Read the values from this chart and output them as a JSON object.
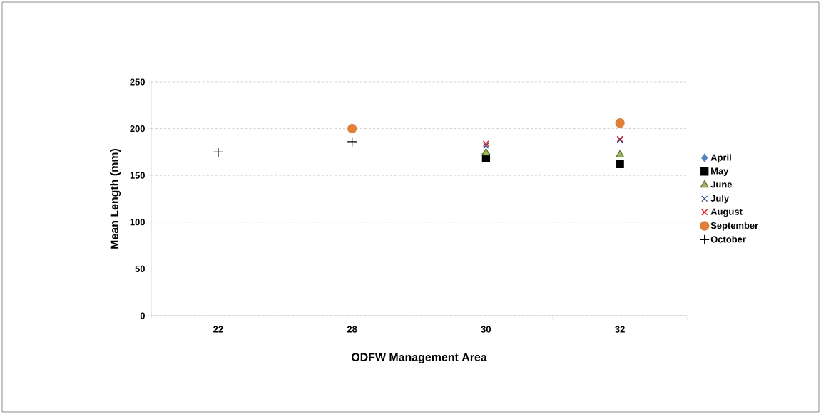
{
  "chart_data": {
    "type": "scatter",
    "xlabel": "ODFW Management Area",
    "ylabel": "Mean Length (mm)",
    "categories": [
      "22",
      "28",
      "30",
      "32"
    ],
    "ylim": [
      0,
      250
    ],
    "yticks": [
      0,
      50,
      100,
      150,
      200,
      250
    ],
    "grid": "y",
    "legend": "right",
    "series": [
      {
        "name": "April",
        "color": "#4f81bd",
        "marker": "diamond",
        "values": [
          null,
          null,
          null,
          null
        ]
      },
      {
        "name": "May",
        "color": "#000000",
        "marker": "square",
        "values": [
          null,
          null,
          169,
          162
        ]
      },
      {
        "name": "June",
        "color": "#9bbb59",
        "marker": "triangle",
        "values": [
          null,
          null,
          174,
          172
        ]
      },
      {
        "name": "July",
        "color": "#1f497d",
        "marker": "cross",
        "values": [
          null,
          null,
          182,
          188
        ]
      },
      {
        "name": "August",
        "color": "#e31a1c",
        "marker": "cross",
        "values": [
          null,
          null,
          184,
          189
        ]
      },
      {
        "name": "September",
        "color": "#e07f3a",
        "marker": "circle",
        "values": [
          null,
          200,
          null,
          206
        ]
      },
      {
        "name": "October",
        "color": "#000000",
        "marker": "plus",
        "values": [
          175,
          186,
          null,
          null
        ]
      }
    ]
  }
}
